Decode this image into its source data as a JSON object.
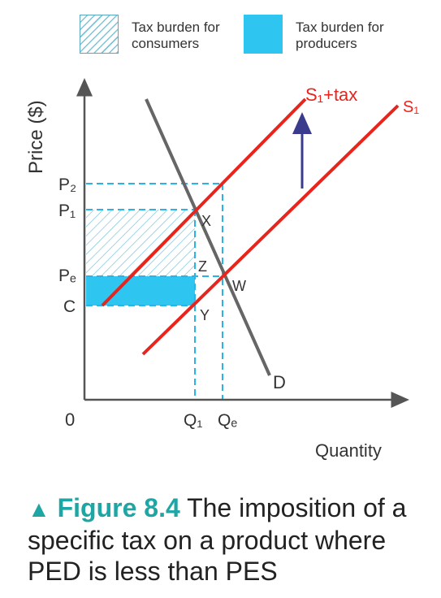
{
  "legend": {
    "consumers": "Tax burden for consumers",
    "producers": "Tax burden for producers"
  },
  "axes": {
    "y_label": "Price ($)",
    "x_label": "Quantity",
    "origin": "0"
  },
  "price_labels": {
    "p2": "P₂",
    "p1": "P₁",
    "pe": "Pₑ",
    "c": "C"
  },
  "quantity_labels": {
    "q1": "Q₁",
    "qe": "Qₑ"
  },
  "curve_labels": {
    "s1_tax": "S₁+tax",
    "s1": "S₁",
    "d": "D"
  },
  "point_labels": {
    "x": "X",
    "z": "Z",
    "w": "W",
    "y": "Y"
  },
  "caption": {
    "marker": "▲",
    "figure": "Figure 8.4",
    "text": " The imposition of a specific tax on a product where PED is less than PES"
  },
  "colors": {
    "supply": "#e8241c",
    "demand": "#666666",
    "dashed": "#2ab3e6",
    "arrow": "#3a3b8c",
    "producer_fill": "#2ec5f0",
    "consumer_hatch": "#7fc3d8",
    "accent": "#1ea6a4"
  }
}
